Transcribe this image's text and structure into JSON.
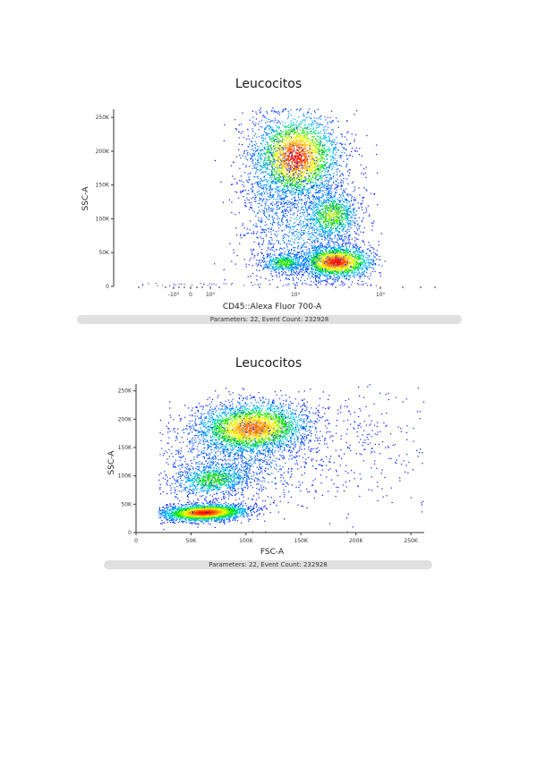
{
  "chart_data": [
    {
      "type": "scatter",
      "style": "density-dot-plot",
      "title": "Leucocitos",
      "xlabel": "CD45::Alexa Fluor 700-A",
      "ylabel": "SSC-A",
      "x_scale": "biexponential",
      "x_tick_labels": [
        "-10³",
        "0",
        "10³",
        "10⁴",
        "10⁵"
      ],
      "y_tick_labels": [
        "0",
        "50K",
        "100K",
        "150K",
        "200K",
        "250K"
      ],
      "ylim": [
        0,
        262144
      ],
      "grid": false,
      "footer": "Parameters: 22, Event Count: 232928",
      "density_colors": [
        "#0000ff",
        "#00c8ff",
        "#00ff00",
        "#ffff00",
        "#ff8c00",
        "#ff0000"
      ],
      "populations": [
        {
          "x_position": "10⁴",
          "y_center": 190000,
          "relative_density": "high"
        },
        {
          "x_position": "between 10⁴ and 10⁵",
          "y_center": 95000,
          "relative_density": "medium"
        },
        {
          "x_position": "between 10⁴ and 10⁵",
          "y_center": 30000,
          "relative_density": "highest"
        },
        {
          "x_position": "just below 10⁴",
          "y_center": 30000,
          "relative_density": "medium"
        }
      ]
    },
    {
      "type": "scatter",
      "style": "density-dot-plot",
      "title": "Leucocitos",
      "xlabel": "FSC-A",
      "ylabel": "SSC-A",
      "x_tick_labels": [
        "0",
        "50K",
        "100K",
        "150K",
        "200K",
        "250K"
      ],
      "y_tick_labels": [
        "0",
        "50K",
        "100K",
        "150K",
        "200K",
        "250K"
      ],
      "xlim": [
        0,
        262144
      ],
      "ylim": [
        0,
        262144
      ],
      "grid": false,
      "footer": "Parameters: 22, Event Count: 232928",
      "density_colors": [
        "#0000ff",
        "#00c8ff",
        "#00ff00",
        "#ffff00",
        "#ff8c00",
        "#ff0000"
      ],
      "populations": [
        {
          "x_center": 105000,
          "y_center": 185000,
          "relative_density": "high"
        },
        {
          "x_center": 70000,
          "y_center": 95000,
          "relative_density": "medium"
        },
        {
          "x_center": 60000,
          "y_center": 35000,
          "relative_density": "highest"
        }
      ]
    }
  ]
}
